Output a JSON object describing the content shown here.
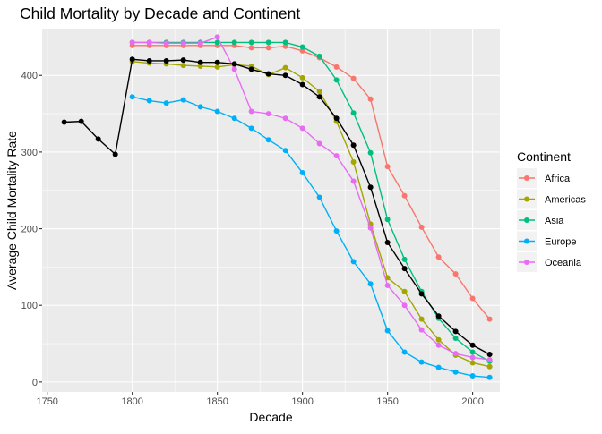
{
  "chart_data": {
    "type": "line",
    "title": "Child Mortality by Decade and Continent",
    "xlabel": "Decade",
    "ylabel": "Average Child Mortality Rate",
    "xlim": [
      1747,
      2016
    ],
    "ylim": [
      -13,
      461
    ],
    "x_ticks": [
      1750,
      1800,
      1850,
      1900,
      1950,
      2000
    ],
    "y_ticks": [
      0,
      100,
      200,
      300,
      400
    ],
    "grid": true,
    "legend_position": "right",
    "legend_title": "Continent",
    "series": [
      {
        "name": "Africa",
        "color": "#F8766D",
        "x": [
          1800,
          1810,
          1820,
          1830,
          1840,
          1850,
          1860,
          1870,
          1880,
          1890,
          1900,
          1910,
          1920,
          1930,
          1940,
          1950,
          1960,
          1970,
          1980,
          1990,
          2000,
          2010
        ],
        "values": [
          439,
          439,
          439,
          439,
          439,
          439,
          439,
          436,
          436,
          438,
          432,
          423,
          411,
          396,
          369,
          281,
          243,
          202,
          163,
          141,
          109,
          82
        ]
      },
      {
        "name": "Americas",
        "color": "#A3A500",
        "x": [
          1800,
          1810,
          1820,
          1830,
          1840,
          1850,
          1860,
          1870,
          1880,
          1890,
          1900,
          1910,
          1920,
          1930,
          1940,
          1950,
          1960,
          1970,
          1980,
          1990,
          2000,
          2010
        ],
        "values": [
          418,
          416,
          415,
          413,
          412,
          411,
          414,
          412,
          401,
          410,
          397,
          379,
          340,
          287,
          206,
          136,
          118,
          82,
          55,
          35,
          25,
          20
        ]
      },
      {
        "name": "Asia",
        "color": "#00BF7D",
        "x": [
          1800,
          1810,
          1820,
          1830,
          1840,
          1850,
          1860,
          1870,
          1880,
          1890,
          1900,
          1910,
          1920,
          1930,
          1940,
          1950,
          1960,
          1970,
          1980,
          1990,
          2000,
          2010
        ],
        "values": [
          443,
          443,
          443,
          443,
          443,
          443,
          443,
          443,
          443,
          443,
          437,
          425,
          394,
          351,
          299,
          212,
          160,
          118,
          83,
          57,
          39,
          27
        ]
      },
      {
        "name": "Europe",
        "color": "#00B0F6",
        "x": [
          1800,
          1810,
          1820,
          1830,
          1840,
          1850,
          1860,
          1870,
          1880,
          1890,
          1900,
          1910,
          1920,
          1930,
          1940,
          1950,
          1960,
          1970,
          1980,
          1990,
          2000,
          2010
        ],
        "values": [
          372,
          367,
          364,
          368,
          359,
          353,
          344,
          331,
          316,
          302,
          273,
          241,
          197,
          157,
          128,
          67,
          39,
          26,
          19,
          13,
          8,
          6
        ]
      },
      {
        "name": "Oceania",
        "color": "#E76BF3",
        "x": [
          1800,
          1810,
          1820,
          1830,
          1840,
          1850,
          1860,
          1870,
          1880,
          1890,
          1900,
          1910,
          1920,
          1930,
          1940,
          1950,
          1960,
          1970,
          1980,
          1990,
          2000,
          2010
        ],
        "values": [
          443,
          443,
          442,
          442,
          442,
          450,
          408,
          353,
          350,
          344,
          331,
          311,
          295,
          262,
          201,
          126,
          100,
          68,
          48,
          37,
          32,
          29
        ]
      },
      {
        "name": "",
        "color": "#000000",
        "x": [
          1760,
          1770,
          1780,
          1790,
          1800,
          1810,
          1820,
          1830,
          1840,
          1850,
          1860,
          1870,
          1880,
          1890,
          1900,
          1910,
          1920,
          1930,
          1940,
          1950,
          1960,
          1970,
          1980,
          1990,
          2000,
          2010
        ],
        "values": [
          339,
          340,
          317,
          297,
          421,
          419,
          419,
          420,
          417,
          417,
          415,
          408,
          402,
          400,
          388,
          372,
          344,
          309,
          254,
          182,
          148,
          115,
          86,
          66,
          48,
          36
        ]
      }
    ]
  }
}
